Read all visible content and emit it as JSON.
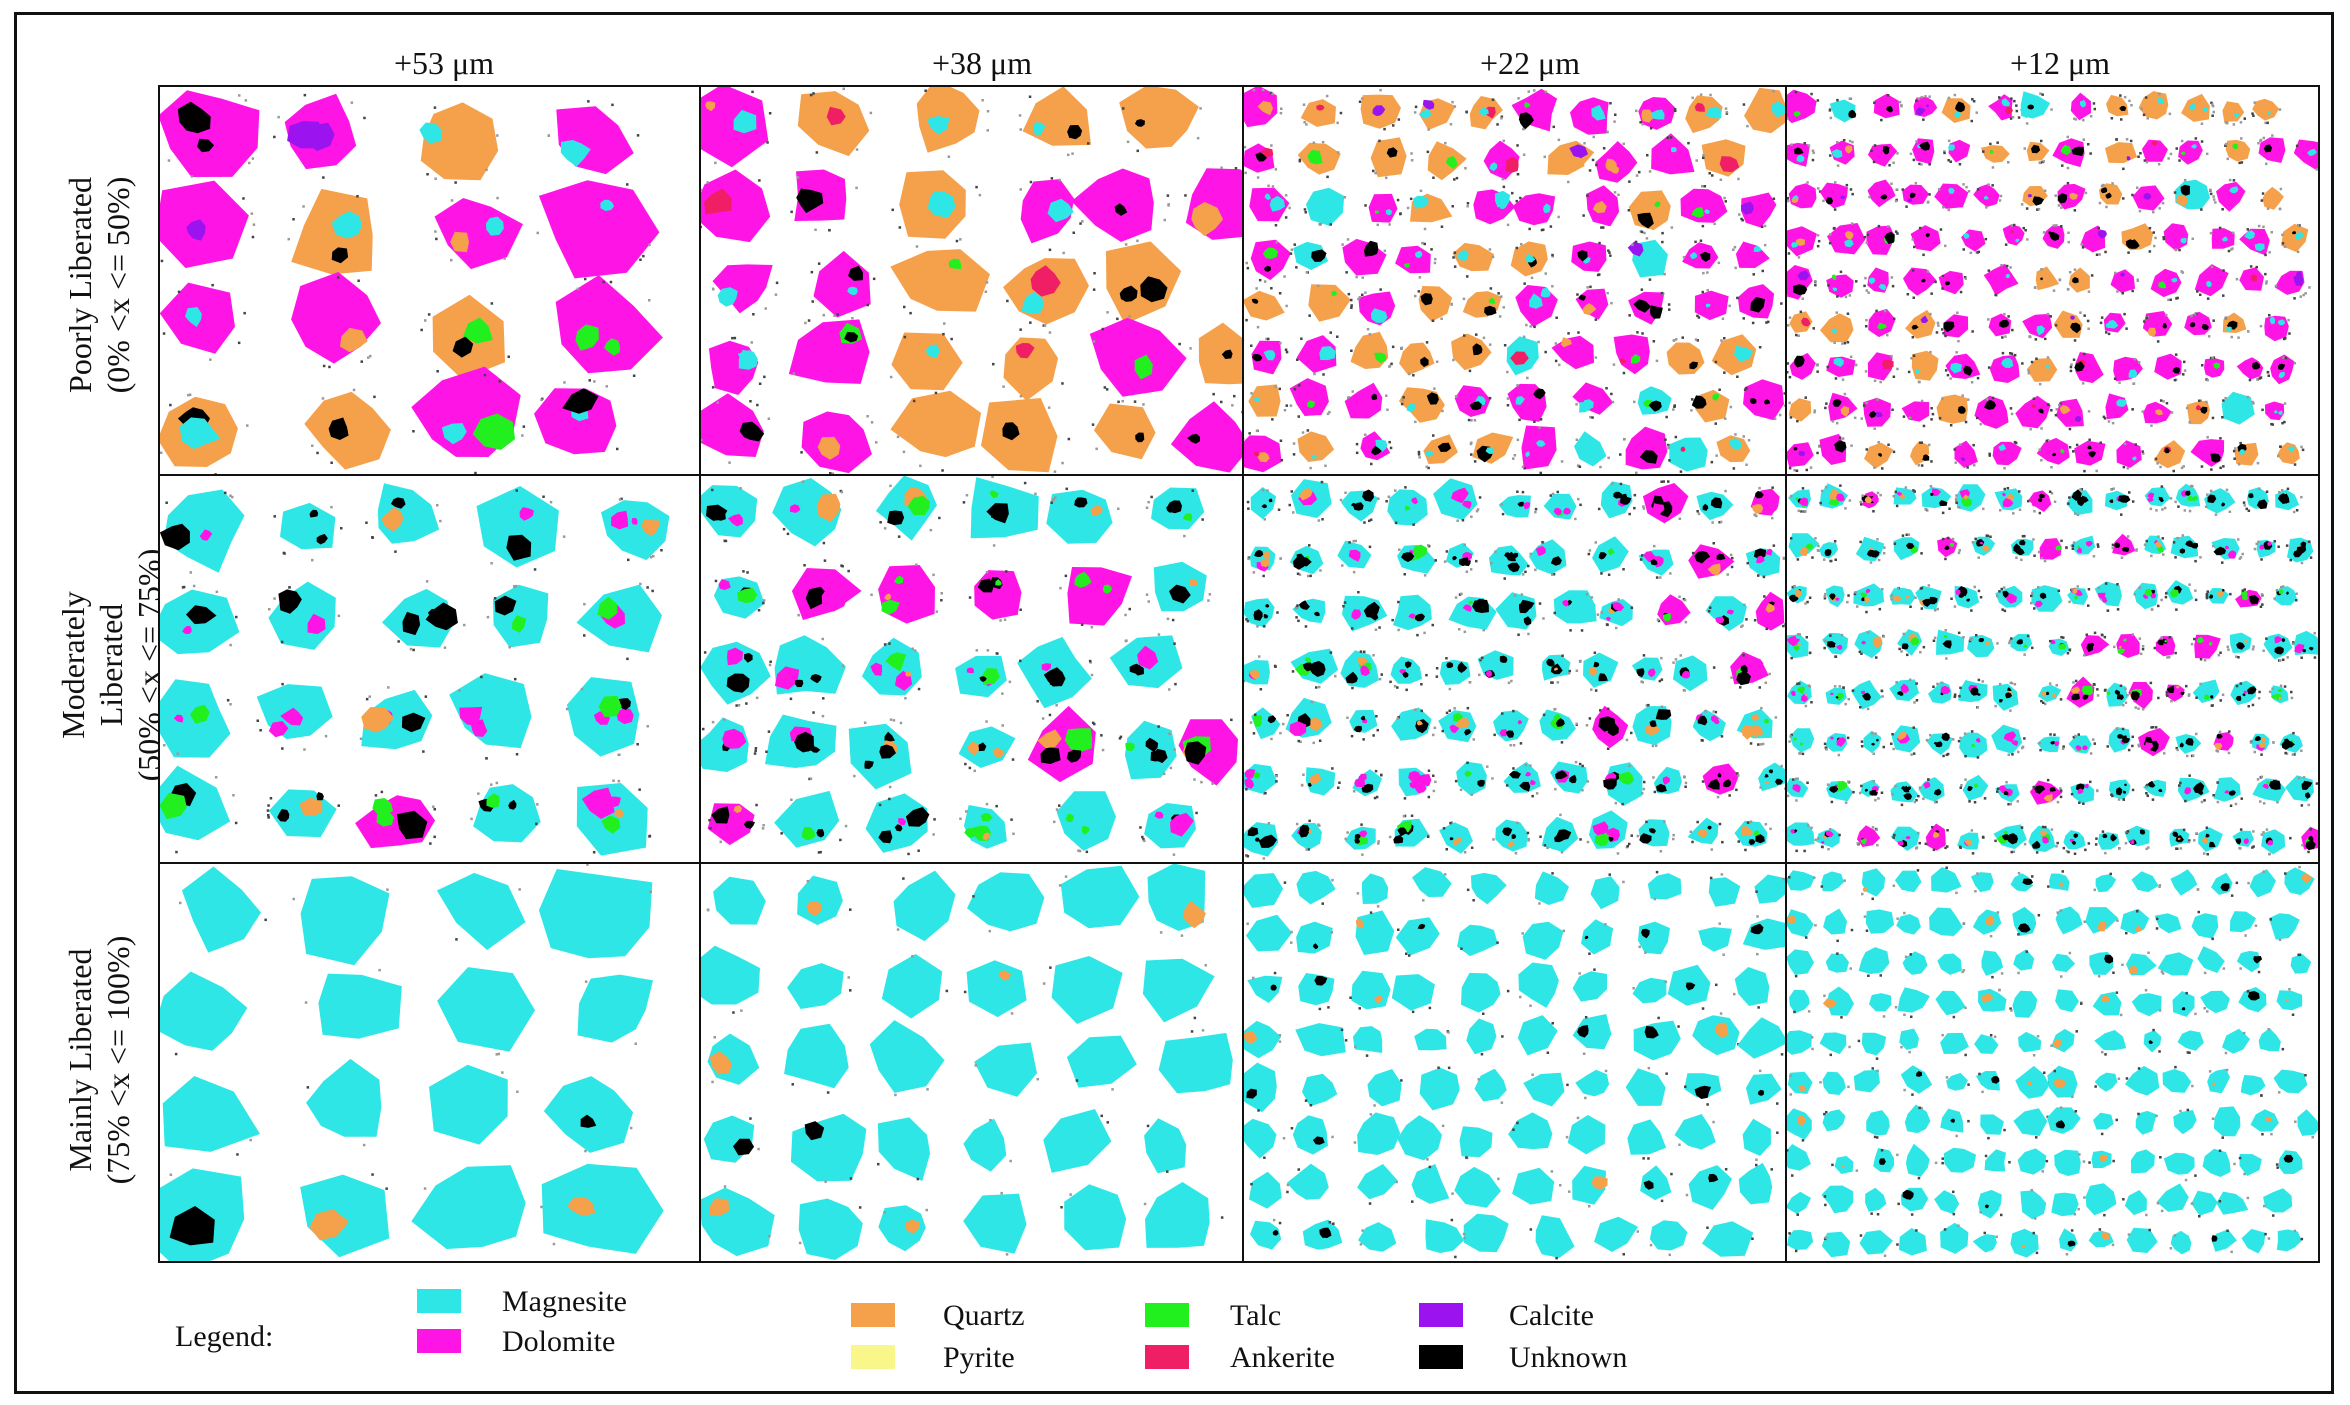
{
  "figure": {
    "columns": [
      "+53 μm",
      "+38 μm",
      "+22 μm",
      "+12 μm"
    ],
    "rows": [
      {
        "line1": "Poorly Liberated",
        "line2": "(0% <x <= 50%)",
        "line3": ""
      },
      {
        "line1": "Moderately",
        "line2": "Liberated",
        "line3": "(50% <x <= 75%)"
      },
      {
        "line1": "Mainly Liberated",
        "line2": "(75% <x <= 100%)",
        "line3": ""
      }
    ],
    "legend_title": "Legend:",
    "legend": [
      {
        "name": "Magnesite",
        "color": "#2EE6E6"
      },
      {
        "name": "Dolomite",
        "color": "#FF14E6"
      },
      {
        "name": "Quartz",
        "color": "#F5A04A"
      },
      {
        "name": "Pyrite",
        "color": "#FAF78A"
      },
      {
        "name": "Talc",
        "color": "#22F01E"
      },
      {
        "name": "Ankerite",
        "color": "#F01E64"
      },
      {
        "name": "Calcite",
        "color": "#9B14F0"
      },
      {
        "name": "Unknown",
        "color": "#000000"
      }
    ]
  }
}
